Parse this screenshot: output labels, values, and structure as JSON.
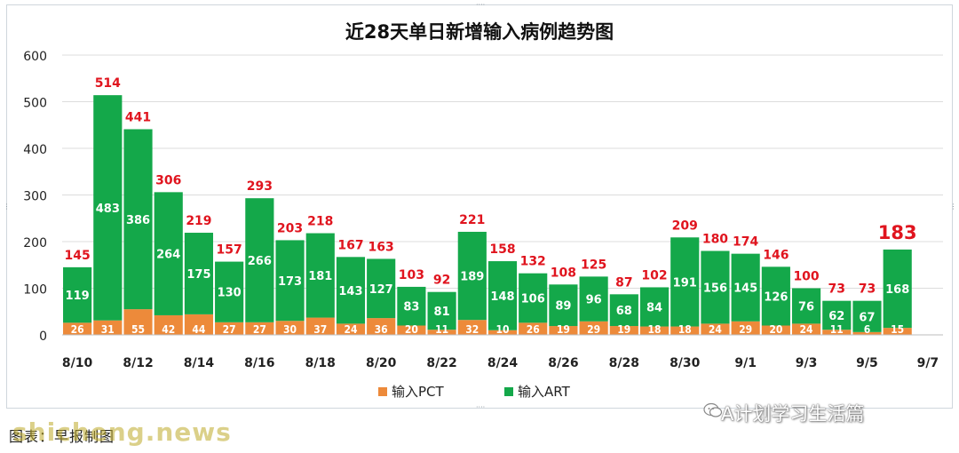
{
  "chart_data": {
    "type": "bar",
    "stacked": true,
    "title": "近28天单日新增输入病例趋势图",
    "categories": [
      "8/10",
      "8/11",
      "8/12",
      "8/13",
      "8/14",
      "8/15",
      "8/16",
      "8/17",
      "8/18",
      "8/19",
      "8/20",
      "8/21",
      "8/22",
      "8/23",
      "8/24",
      "8/25",
      "8/26",
      "8/27",
      "8/28",
      "8/29",
      "8/30",
      "8/31",
      "9/1",
      "9/2",
      "9/3",
      "9/4",
      "9/5",
      "9/6",
      "9/7"
    ],
    "x_tick_labels": [
      "8/10",
      "8/12",
      "8/14",
      "8/16",
      "8/18",
      "8/20",
      "8/22",
      "8/24",
      "8/26",
      "8/28",
      "8/30",
      "9/1",
      "9/3",
      "9/5",
      "9/7"
    ],
    "series": [
      {
        "name": "输入PCT",
        "color": "#ed8a3a",
        "values": [
          26,
          31,
          55,
          42,
          44,
          27,
          27,
          30,
          37,
          24,
          36,
          20,
          11,
          32,
          10,
          26,
          19,
          29,
          19,
          18,
          18,
          24,
          29,
          20,
          24,
          11,
          6,
          15,
          null
        ]
      },
      {
        "name": "输入ART",
        "color": "#14a84a",
        "values": [
          119,
          483,
          386,
          264,
          175,
          130,
          266,
          173,
          181,
          143,
          127,
          83,
          81,
          189,
          148,
          106,
          89,
          96,
          68,
          84,
          191,
          156,
          145,
          126,
          76,
          62,
          67,
          168,
          null
        ]
      }
    ],
    "totals": [
      145,
      514,
      441,
      306,
      219,
      157,
      293,
      203,
      218,
      167,
      163,
      103,
      92,
      221,
      158,
      132,
      108,
      125,
      87,
      102,
      209,
      180,
      174,
      146,
      100,
      73,
      73,
      183,
      null
    ],
    "highlight_total_index": 27,
    "y_ticks": [
      0,
      100,
      200,
      300,
      400,
      500,
      600
    ],
    "ylim": [
      0,
      600
    ],
    "legend": "bottom",
    "grid": true,
    "total_label_color": "#e0141e"
  },
  "footer": {
    "note": "图表：早报制图",
    "watermark": "shicheng.news",
    "brand": "A计划学习生活篇"
  }
}
